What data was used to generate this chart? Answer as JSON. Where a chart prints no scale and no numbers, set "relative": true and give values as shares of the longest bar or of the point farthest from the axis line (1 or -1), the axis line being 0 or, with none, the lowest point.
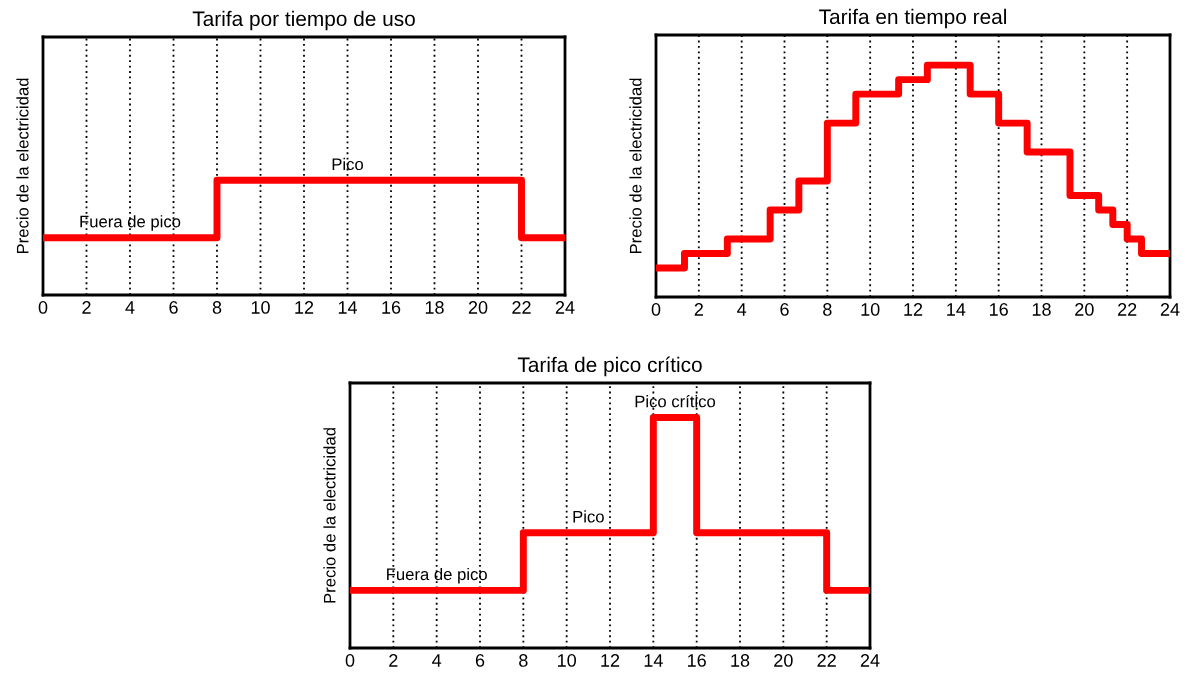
{
  "chart_data": [
    {
      "type": "step",
      "title": "Tarifa por tiempo de uso",
      "ylabel": "Precio de la electricidad",
      "relative": true,
      "x": [
        0,
        8,
        22,
        24
      ],
      "values": [
        0.5,
        1,
        0.5,
        0.5
      ],
      "color": "#ff0000",
      "xlim": [
        0,
        24
      ],
      "xticks": [
        0,
        2,
        4,
        6,
        8,
        10,
        12,
        14,
        16,
        18,
        20,
        22,
        24
      ],
      "grid": "x",
      "annotations": [
        {
          "text": "Fuera de pico",
          "x": 4,
          "y": 0.5
        },
        {
          "text": "Pico",
          "x": 14,
          "y": 1
        }
      ]
    },
    {
      "type": "step",
      "title": "Tarifa en tiempo real",
      "ylabel": "Precio de la electricidad",
      "relative": true,
      "x": [
        0,
        1.33,
        3.33,
        5.33,
        6.67,
        8,
        9.33,
        11.33,
        12.67,
        14.67,
        16,
        17.33,
        19.33,
        20.67,
        21.33,
        22,
        22.67,
        24
      ],
      "values": [
        0.125,
        0.1875,
        0.25,
        0.375,
        0.5,
        0.75,
        0.875,
        0.9375,
        1,
        0.875,
        0.75,
        0.625,
        0.4375,
        0.375,
        0.3125,
        0.25,
        0.1875,
        0.1875
      ],
      "color": "#ff0000",
      "xlim": [
        0,
        24
      ],
      "xticks": [
        0,
        2,
        4,
        6,
        8,
        10,
        12,
        14,
        16,
        18,
        20,
        22,
        24
      ],
      "grid": "x"
    },
    {
      "type": "step",
      "title": "Tarifa de pico crítico",
      "ylabel": "Precio de la electricidad",
      "relative": true,
      "x": [
        0,
        8,
        14,
        16,
        22,
        24
      ],
      "values": [
        0.25,
        0.5,
        1,
        0.5,
        0.25,
        0.25
      ],
      "color": "#ff0000",
      "xlim": [
        0,
        24
      ],
      "xticks": [
        0,
        2,
        4,
        6,
        8,
        10,
        12,
        14,
        16,
        18,
        20,
        22,
        24
      ],
      "grid": "x",
      "annotations": [
        {
          "text": "Fuera de pico",
          "x": 4,
          "y": 0.25
        },
        {
          "text": "Pico",
          "x": 11,
          "y": 0.5
        },
        {
          "text": "Pico crítico",
          "x": 15,
          "y": 1
        }
      ]
    }
  ]
}
